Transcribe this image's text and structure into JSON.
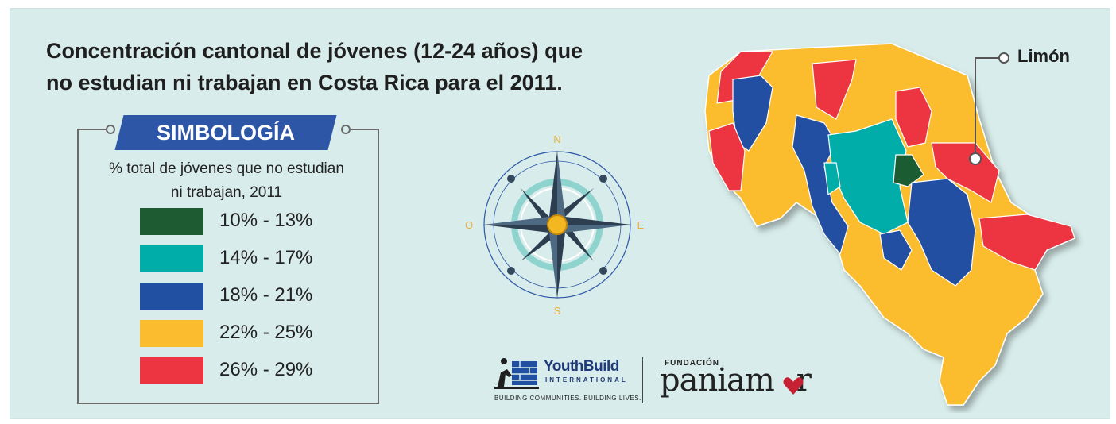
{
  "title": "Concentración cantonal de jóvenes (12-24 años) que\nno estudian ni trabajan en Costa Rica para el 2011.",
  "legend": {
    "heading": "SIMBOLOGÍA",
    "description": "% total de jóvenes que no estudian ni trabajan, 2011",
    "items": [
      {
        "label": "10% - 13%",
        "color": "#1e5b33"
      },
      {
        "label": "14% - 17%",
        "color": "#00ada9"
      },
      {
        "label": "18% - 21%",
        "color": "#2150a2"
      },
      {
        "label": "22% - 25%",
        "color": "#fbbc2f"
      },
      {
        "label": "26% - 29%",
        "color": "#ec3540"
      }
    ]
  },
  "compass": {
    "n": "N",
    "s": "S",
    "e": "E",
    "w": "O"
  },
  "map": {
    "callout": "Limón"
  },
  "logos": {
    "youthbuild": {
      "name": "YouthBuild",
      "sub": "INTERNATIONAL",
      "tagline": "BUILDING COMMUNITIES. BUILDING LIVES."
    },
    "paniamor": {
      "small": "FUNDACIÓN",
      "name": "paniam",
      "name_end": "r"
    }
  }
}
